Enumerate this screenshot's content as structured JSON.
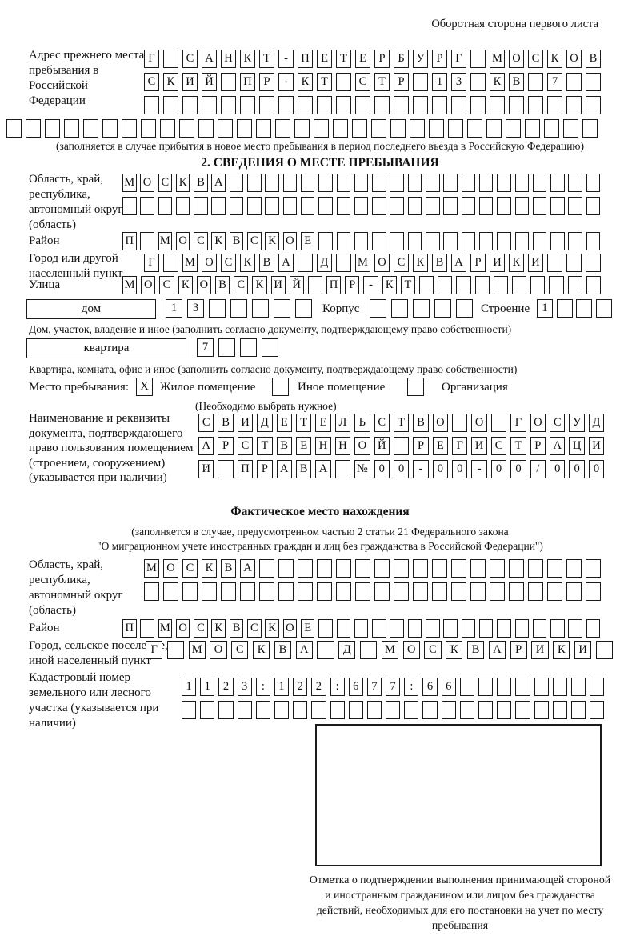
{
  "header": {
    "side_note": "Оборотная сторона первого листа"
  },
  "prev_address": {
    "label": "Адрес прежнего места пребывания в Российской Федерации",
    "row1": [
      "Г",
      "",
      "С",
      "А",
      "Н",
      "К",
      "Т",
      "-",
      "П",
      "Е",
      "Т",
      "Е",
      "Р",
      "Б",
      "У",
      "Р",
      "Г",
      "",
      "М",
      "О",
      "С",
      "К",
      "О",
      "В"
    ],
    "row2": [
      "С",
      "К",
      "И",
      "Й",
      "",
      "П",
      "Р",
      "-",
      "К",
      "Т",
      "",
      "С",
      "Т",
      "Р",
      "",
      "1",
      "3",
      "",
      "К",
      "В",
      "",
      "7",
      "",
      ""
    ],
    "row3": 24,
    "row4": 31,
    "note": "(заполняется в случае прибытия в новое место пребывания в период последнего въезда в Российскую Федерацию)"
  },
  "section2": {
    "title": "2. СВЕДЕНИЯ О МЕСТЕ ПРЕБЫВАНИЯ",
    "region": {
      "label": "Область, край, республика, автономный округ (область)",
      "row1": [
        "М",
        "О",
        "С",
        "К",
        "В",
        "А",
        "",
        "",
        "",
        "",
        "",
        "",
        "",
        "",
        "",
        "",
        "",
        "",
        "",
        "",
        "",
        "",
        "",
        "",
        "",
        "",
        ""
      ],
      "row2": 27
    },
    "district": {
      "label": "Район",
      "cells": [
        "П",
        "",
        "М",
        "О",
        "С",
        "К",
        "В",
        "С",
        "К",
        "О",
        "Е",
        "",
        "",
        "",
        "",
        "",
        "",
        "",
        "",
        "",
        "",
        "",
        "",
        "",
        "",
        "",
        ""
      ]
    },
    "city": {
      "label": "Город или другой населенный пункт",
      "cells": [
        "Г",
        "",
        "М",
        "О",
        "С",
        "К",
        "В",
        "А",
        "",
        "Д",
        "",
        "М",
        "О",
        "С",
        "К",
        "В",
        "А",
        "Р",
        "И",
        "К",
        "И",
        "",
        "",
        ""
      ]
    },
    "street": {
      "label": "Улица",
      "cells": [
        "М",
        "О",
        "С",
        "К",
        "О",
        "В",
        "С",
        "К",
        "И",
        "Й",
        "",
        "П",
        "Р",
        "-",
        "К",
        "Т",
        "",
        "",
        "",
        "",
        "",
        "",
        "",
        "",
        "",
        ""
      ]
    },
    "house": {
      "type_label": "дом",
      "cells": [
        "1",
        "3",
        "",
        "",
        "",
        "",
        ""
      ],
      "korpus_label": "Корпус",
      "korpus_cells": 5,
      "stroenie_label": "Строение",
      "stroenie_cells": [
        "1",
        "",
        "",
        ""
      ]
    },
    "house_note": "Дом, участок, владение и иное (заполнить согласно документу, подтверждающему право собственности)",
    "apartment": {
      "type_label": "квартира",
      "cells": [
        "7",
        "",
        "",
        ""
      ]
    },
    "apartment_note": "Квартира, комната, офис и иное (заполнить согласно документу, подтверждающему право собственности)",
    "stay": {
      "label": "Место пребывания:",
      "options": [
        {
          "label": "Жилое помещение",
          "mark": "X"
        },
        {
          "label": "Иное помещение",
          "mark": ""
        },
        {
          "label": "Организация",
          "mark": ""
        }
      ],
      "note": "(Необходимо выбрать нужное)"
    },
    "document": {
      "label": "Наименование и реквизиты документа, подтверждающего право пользования помещением (строением, сооружением) (указывается при наличии)",
      "row1": [
        "С",
        "В",
        "И",
        "Д",
        "Е",
        "Т",
        "Е",
        "Л",
        "Ь",
        "С",
        "Т",
        "В",
        "О",
        "",
        "О",
        "",
        "Г",
        "О",
        "С",
        "У",
        "Д"
      ],
      "row2": [
        "А",
        "Р",
        "С",
        "Т",
        "В",
        "Е",
        "Н",
        "Н",
        "О",
        "Й",
        "",
        "Р",
        "Е",
        "Г",
        "И",
        "С",
        "Т",
        "Р",
        "А",
        "Ц",
        "И"
      ],
      "row3": [
        "И",
        "",
        "П",
        "Р",
        "А",
        "В",
        "А",
        "",
        "№",
        "0",
        "0",
        "-",
        "0",
        "0",
        "-",
        "0",
        "0",
        "/",
        "0",
        "0",
        "0"
      ]
    }
  },
  "actual_location": {
    "title": "Фактическое место нахождения",
    "note_line1": "(заполняется в случае, предусмотренном частью 2 статьи 21 Федерального закона",
    "note_line2": "\"О миграционном учете иностранных граждан и лиц без гражданства в Российской Федерации\")",
    "region": {
      "label": "Область, край, республика, автономный округ (область)",
      "row1": [
        "М",
        "О",
        "С",
        "К",
        "В",
        "А",
        "",
        "",
        "",
        "",
        "",
        "",
        "",
        "",
        "",
        "",
        "",
        "",
        "",
        "",
        "",
        "",
        "",
        ""
      ],
      "row2": 24
    },
    "district": {
      "label": "Район",
      "cells": [
        "П",
        "",
        "М",
        "О",
        "С",
        "К",
        "В",
        "С",
        "К",
        "О",
        "Е",
        "",
        "",
        "",
        "",
        "",
        "",
        "",
        "",
        "",
        "",
        "",
        "",
        "",
        "",
        "",
        ""
      ]
    },
    "city": {
      "label": "Город, сельское поселение, иной населенный пункт",
      "cells": [
        "Г",
        "",
        "М",
        "О",
        "С",
        "К",
        "В",
        "А",
        "",
        "Д",
        "",
        "М",
        "О",
        "С",
        "К",
        "В",
        "А",
        "Р",
        "И",
        "К",
        "И",
        ""
      ]
    },
    "cadastral": {
      "label": "Кадастровый номер земельного или лесного участка (указывается при наличии)",
      "row1": [
        "1",
        "1",
        "2",
        "3",
        ":",
        "1",
        "2",
        "2",
        ":",
        "6",
        "7",
        "7",
        ":",
        "6",
        "6",
        "",
        "",
        "",
        "",
        "",
        "",
        "",
        ""
      ],
      "row2": 23
    }
  },
  "stamp": {
    "caption": "Отметка о подтверждении выполнения принимающей стороной и иностранным гражданином или лицом без гражданства действий, необходимых для его постановки на учет по месту пребывания"
  }
}
